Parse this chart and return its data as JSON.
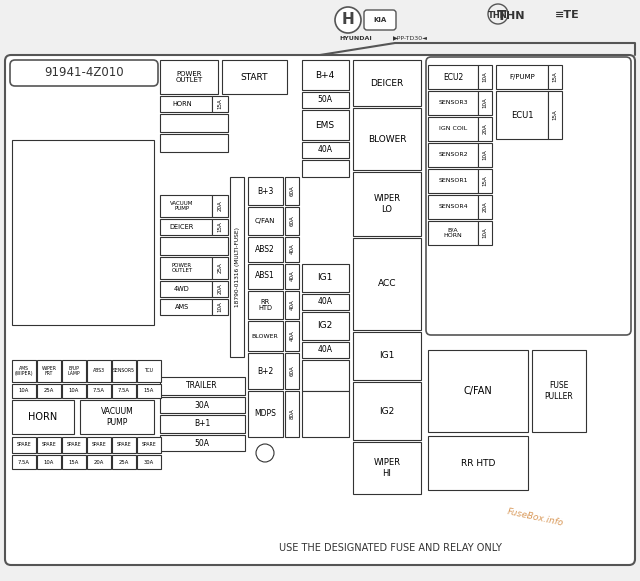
{
  "bg_color": "#f0f0f0",
  "border_color": "#333333",
  "title_text": "91941-4Z010",
  "part_number": "PP-TD30",
  "footer_text": "USE THE DESIGNATED FUSE AND RELAY ONLY",
  "watermark": "FuseBox.info"
}
